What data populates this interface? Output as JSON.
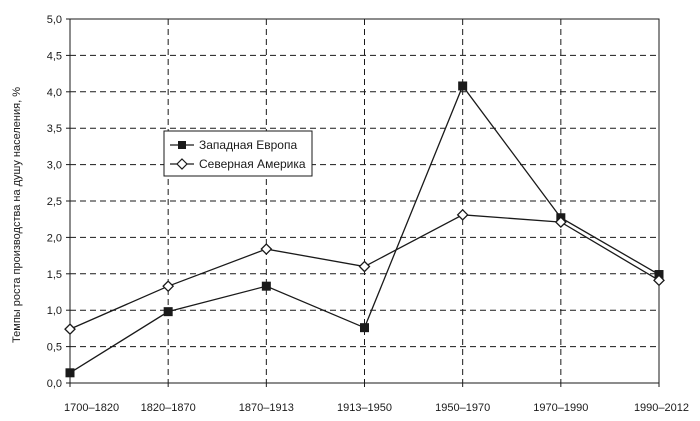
{
  "chart_data": {
    "type": "line",
    "title": "",
    "xlabel": "",
    "ylabel": "Темпы роста производства на душу населения, %",
    "categories": [
      "1700–1820",
      "1820–1870",
      "1870–1913",
      "1913–1950",
      "1950–1970",
      "1970–1990",
      "1990–2012"
    ],
    "y_ticks": [
      "0,0",
      "0,5",
      "1,0",
      "1,5",
      "2,0",
      "2,5",
      "3,0",
      "3,5",
      "4,0",
      "4,5",
      "5,0"
    ],
    "ylim": [
      0,
      5
    ],
    "grid": "dashed",
    "legend_position": "upper-left",
    "series": [
      {
        "name": "Западная Европа",
        "marker": "square-filled",
        "color": "#1a1a1a",
        "values": [
          0.14,
          0.98,
          1.33,
          0.76,
          4.08,
          2.27,
          1.49
        ]
      },
      {
        "name": "Северная Америка",
        "marker": "diamond-open",
        "color": "#1a1a1a",
        "values": [
          0.74,
          1.33,
          1.84,
          1.6,
          2.31,
          2.21,
          1.41
        ]
      }
    ]
  }
}
